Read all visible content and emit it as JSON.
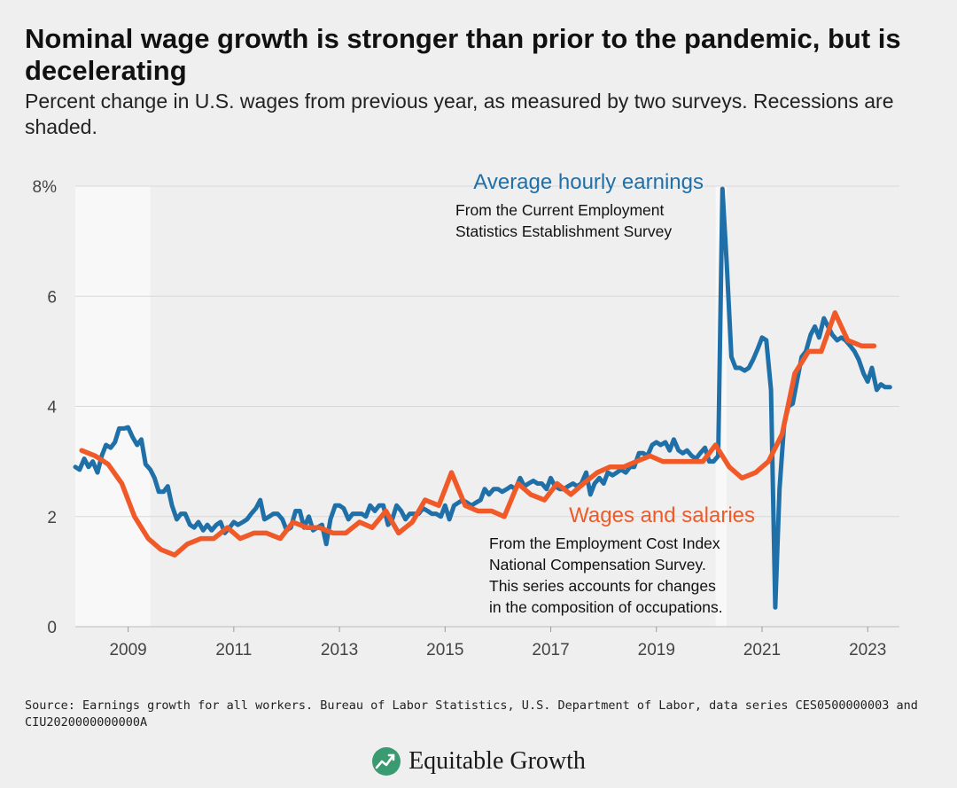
{
  "header": {
    "title": "Nominal wage growth is stronger than prior to the pandemic, but is decelerating",
    "subtitle": "Percent change in U.S. wages from previous year, as measured by two surveys. Recessions are shaded."
  },
  "footer": {
    "source": "Source: Earnings growth for all workers. Bureau of Labor Statistics, U.S. Department of Labor, data series CES0500000003 and CIU2020000000000A",
    "brand": "Equitable Growth"
  },
  "colors": {
    "ahe": "#1f6fa8",
    "eci": "#f05a28",
    "background": "#efefef",
    "recession": "#f8f8f8",
    "grid": "#d8d8d8",
    "logo_green": "#3a9a70"
  },
  "chart_data": {
    "type": "line",
    "xlim": [
      2008.0,
      2023.6
    ],
    "ylim": [
      0,
      8
    ],
    "yticks": [
      0,
      2,
      4,
      6,
      8
    ],
    "ytick_labels": [
      "0",
      "2",
      "4",
      "6",
      "8%"
    ],
    "xticks": [
      2009,
      2011,
      2013,
      2015,
      2017,
      2019,
      2021,
      2023
    ],
    "xtick_labels": [
      "2009",
      "2011",
      "2013",
      "2015",
      "2017",
      "2019",
      "2021",
      "2023"
    ],
    "grid": true,
    "recessions": [
      [
        2008.0,
        2009.42
      ],
      [
        2020.12,
        2020.33
      ]
    ],
    "series": [
      {
        "name": "Average hourly earnings",
        "note": [
          "From the Current Employment",
          "Statistics Establishment Survey"
        ],
        "color": "#1f6fa8",
        "points": [
          [
            2008.0,
            2.9
          ],
          [
            2008.08,
            2.85
          ],
          [
            2008.17,
            3.05
          ],
          [
            2008.25,
            2.9
          ],
          [
            2008.33,
            3.0
          ],
          [
            2008.42,
            2.8
          ],
          [
            2008.5,
            3.1
          ],
          [
            2008.58,
            3.3
          ],
          [
            2008.67,
            3.25
          ],
          [
            2008.75,
            3.35
          ],
          [
            2008.83,
            3.6
          ],
          [
            2008.92,
            3.6
          ],
          [
            2009.0,
            3.62
          ],
          [
            2009.08,
            3.45
          ],
          [
            2009.17,
            3.3
          ],
          [
            2009.25,
            3.4
          ],
          [
            2009.33,
            2.95
          ],
          [
            2009.42,
            2.85
          ],
          [
            2009.5,
            2.7
          ],
          [
            2009.58,
            2.45
          ],
          [
            2009.67,
            2.45
          ],
          [
            2009.75,
            2.55
          ],
          [
            2009.83,
            2.2
          ],
          [
            2009.92,
            1.95
          ],
          [
            2010.0,
            2.05
          ],
          [
            2010.08,
            2.05
          ],
          [
            2010.17,
            1.85
          ],
          [
            2010.25,
            1.8
          ],
          [
            2010.33,
            1.9
          ],
          [
            2010.42,
            1.75
          ],
          [
            2010.5,
            1.85
          ],
          [
            2010.58,
            1.75
          ],
          [
            2010.67,
            1.85
          ],
          [
            2010.75,
            1.9
          ],
          [
            2010.83,
            1.7
          ],
          [
            2010.92,
            1.8
          ],
          [
            2011.0,
            1.9
          ],
          [
            2011.08,
            1.85
          ],
          [
            2011.17,
            1.9
          ],
          [
            2011.25,
            1.95
          ],
          [
            2011.33,
            2.05
          ],
          [
            2011.42,
            2.15
          ],
          [
            2011.5,
            2.3
          ],
          [
            2011.58,
            1.95
          ],
          [
            2011.67,
            2.0
          ],
          [
            2011.75,
            2.05
          ],
          [
            2011.83,
            2.05
          ],
          [
            2011.92,
            1.95
          ],
          [
            2012.0,
            1.75
          ],
          [
            2012.08,
            1.8
          ],
          [
            2012.17,
            2.1
          ],
          [
            2012.25,
            2.1
          ],
          [
            2012.33,
            1.8
          ],
          [
            2012.42,
            2.0
          ],
          [
            2012.5,
            1.75
          ],
          [
            2012.58,
            1.8
          ],
          [
            2012.67,
            1.85
          ],
          [
            2012.75,
            1.5
          ],
          [
            2012.83,
            1.95
          ],
          [
            2012.92,
            2.2
          ],
          [
            2013.0,
            2.2
          ],
          [
            2013.08,
            2.15
          ],
          [
            2013.17,
            1.95
          ],
          [
            2013.25,
            2.05
          ],
          [
            2013.33,
            2.05
          ],
          [
            2013.42,
            2.05
          ],
          [
            2013.5,
            2.0
          ],
          [
            2013.58,
            2.2
          ],
          [
            2013.67,
            2.1
          ],
          [
            2013.75,
            2.2
          ],
          [
            2013.83,
            2.2
          ],
          [
            2013.92,
            1.85
          ],
          [
            2014.0,
            1.95
          ],
          [
            2014.08,
            2.2
          ],
          [
            2014.17,
            2.1
          ],
          [
            2014.25,
            1.95
          ],
          [
            2014.33,
            2.05
          ],
          [
            2014.42,
            2.05
          ],
          [
            2014.5,
            2.05
          ],
          [
            2014.58,
            2.15
          ],
          [
            2014.67,
            2.1
          ],
          [
            2014.75,
            2.05
          ],
          [
            2014.83,
            2.05
          ],
          [
            2014.92,
            2.0
          ],
          [
            2015.0,
            2.2
          ],
          [
            2015.08,
            1.95
          ],
          [
            2015.17,
            2.2
          ],
          [
            2015.25,
            2.25
          ],
          [
            2015.33,
            2.3
          ],
          [
            2015.42,
            2.25
          ],
          [
            2015.5,
            2.2
          ],
          [
            2015.58,
            2.25
          ],
          [
            2015.67,
            2.3
          ],
          [
            2015.75,
            2.5
          ],
          [
            2015.83,
            2.4
          ],
          [
            2015.92,
            2.5
          ],
          [
            2016.0,
            2.5
          ],
          [
            2016.08,
            2.45
          ],
          [
            2016.17,
            2.5
          ],
          [
            2016.25,
            2.55
          ],
          [
            2016.33,
            2.5
          ],
          [
            2016.42,
            2.7
          ],
          [
            2016.5,
            2.55
          ],
          [
            2016.58,
            2.6
          ],
          [
            2016.67,
            2.65
          ],
          [
            2016.75,
            2.6
          ],
          [
            2016.83,
            2.6
          ],
          [
            2016.92,
            2.5
          ],
          [
            2017.0,
            2.7
          ],
          [
            2017.08,
            2.55
          ],
          [
            2017.17,
            2.5
          ],
          [
            2017.25,
            2.5
          ],
          [
            2017.33,
            2.55
          ],
          [
            2017.42,
            2.6
          ],
          [
            2017.5,
            2.55
          ],
          [
            2017.58,
            2.6
          ],
          [
            2017.67,
            2.8
          ],
          [
            2017.75,
            2.4
          ],
          [
            2017.83,
            2.6
          ],
          [
            2017.92,
            2.7
          ],
          [
            2018.0,
            2.6
          ],
          [
            2018.08,
            2.8
          ],
          [
            2018.17,
            2.75
          ],
          [
            2018.25,
            2.8
          ],
          [
            2018.33,
            2.85
          ],
          [
            2018.42,
            2.8
          ],
          [
            2018.5,
            2.9
          ],
          [
            2018.58,
            2.9
          ],
          [
            2018.67,
            3.15
          ],
          [
            2018.75,
            3.15
          ],
          [
            2018.83,
            3.1
          ],
          [
            2018.92,
            3.3
          ],
          [
            2019.0,
            3.35
          ],
          [
            2019.08,
            3.3
          ],
          [
            2019.17,
            3.35
          ],
          [
            2019.25,
            3.2
          ],
          [
            2019.33,
            3.4
          ],
          [
            2019.42,
            3.2
          ],
          [
            2019.5,
            3.15
          ],
          [
            2019.58,
            3.2
          ],
          [
            2019.67,
            3.1
          ],
          [
            2019.75,
            3.05
          ],
          [
            2019.83,
            3.15
          ],
          [
            2019.92,
            3.25
          ],
          [
            2020.0,
            3.0
          ],
          [
            2020.08,
            3.0
          ],
          [
            2020.17,
            3.1
          ],
          [
            2020.25,
            7.95
          ],
          [
            2020.33,
            6.6
          ],
          [
            2020.42,
            4.9
          ],
          [
            2020.5,
            4.7
          ],
          [
            2020.58,
            4.7
          ],
          [
            2020.67,
            4.65
          ],
          [
            2020.75,
            4.7
          ],
          [
            2020.83,
            4.85
          ],
          [
            2020.92,
            5.05
          ],
          [
            2021.0,
            5.25
          ],
          [
            2021.08,
            5.2
          ],
          [
            2021.17,
            4.3
          ],
          [
            2021.25,
            0.35
          ],
          [
            2021.33,
            2.5
          ],
          [
            2021.42,
            3.7
          ],
          [
            2021.5,
            4.0
          ],
          [
            2021.58,
            4.05
          ],
          [
            2021.67,
            4.5
          ],
          [
            2021.75,
            4.9
          ],
          [
            2021.83,
            5.0
          ],
          [
            2021.92,
            5.3
          ],
          [
            2022.0,
            5.45
          ],
          [
            2022.08,
            5.25
          ],
          [
            2022.17,
            5.6
          ],
          [
            2022.25,
            5.45
          ],
          [
            2022.33,
            5.3
          ],
          [
            2022.42,
            5.2
          ],
          [
            2022.5,
            5.25
          ],
          [
            2022.58,
            5.2
          ],
          [
            2022.67,
            5.1
          ],
          [
            2022.75,
            5.0
          ],
          [
            2022.83,
            4.85
          ],
          [
            2022.92,
            4.6
          ],
          [
            2023.0,
            4.45
          ],
          [
            2023.08,
            4.7
          ],
          [
            2023.17,
            4.3
          ],
          [
            2023.25,
            4.4
          ],
          [
            2023.33,
            4.35
          ],
          [
            2023.42,
            4.35
          ]
        ]
      },
      {
        "name": "Wages and salaries",
        "note": [
          "From the Employment Cost Index",
          "National Compensation Survey.",
          "This series accounts for changes",
          "in the composition of occupations."
        ],
        "color": "#f05a28",
        "points": [
          [
            2008.12,
            3.2
          ],
          [
            2008.38,
            3.1
          ],
          [
            2008.62,
            2.95
          ],
          [
            2008.88,
            2.6
          ],
          [
            2009.12,
            2.0
          ],
          [
            2009.38,
            1.6
          ],
          [
            2009.62,
            1.4
          ],
          [
            2009.88,
            1.3
          ],
          [
            2010.12,
            1.5
          ],
          [
            2010.38,
            1.6
          ],
          [
            2010.62,
            1.6
          ],
          [
            2010.88,
            1.8
          ],
          [
            2011.12,
            1.6
          ],
          [
            2011.38,
            1.7
          ],
          [
            2011.62,
            1.7
          ],
          [
            2011.88,
            1.6
          ],
          [
            2012.12,
            1.9
          ],
          [
            2012.38,
            1.8
          ],
          [
            2012.62,
            1.8
          ],
          [
            2012.88,
            1.7
          ],
          [
            2013.12,
            1.7
          ],
          [
            2013.38,
            1.9
          ],
          [
            2013.62,
            1.8
          ],
          [
            2013.88,
            2.1
          ],
          [
            2014.12,
            1.7
          ],
          [
            2014.38,
            1.9
          ],
          [
            2014.62,
            2.3
          ],
          [
            2014.88,
            2.2
          ],
          [
            2015.12,
            2.8
          ],
          [
            2015.38,
            2.2
          ],
          [
            2015.62,
            2.1
          ],
          [
            2015.88,
            2.1
          ],
          [
            2016.12,
            2.0
          ],
          [
            2016.38,
            2.6
          ],
          [
            2016.62,
            2.4
          ],
          [
            2016.88,
            2.3
          ],
          [
            2017.12,
            2.6
          ],
          [
            2017.38,
            2.4
          ],
          [
            2017.62,
            2.6
          ],
          [
            2017.88,
            2.8
          ],
          [
            2018.12,
            2.9
          ],
          [
            2018.38,
            2.9
          ],
          [
            2018.62,
            3.0
          ],
          [
            2018.88,
            3.1
          ],
          [
            2019.12,
            3.0
          ],
          [
            2019.38,
            3.0
          ],
          [
            2019.62,
            3.0
          ],
          [
            2019.88,
            3.0
          ],
          [
            2020.12,
            3.3
          ],
          [
            2020.38,
            2.9
          ],
          [
            2020.62,
            2.7
          ],
          [
            2020.88,
            2.8
          ],
          [
            2021.12,
            3.0
          ],
          [
            2021.38,
            3.5
          ],
          [
            2021.62,
            4.6
          ],
          [
            2021.88,
            5.0
          ],
          [
            2022.12,
            5.0
          ],
          [
            2022.38,
            5.7
          ],
          [
            2022.62,
            5.2
          ],
          [
            2022.88,
            5.1
          ],
          [
            2023.12,
            5.1
          ]
        ]
      }
    ]
  }
}
